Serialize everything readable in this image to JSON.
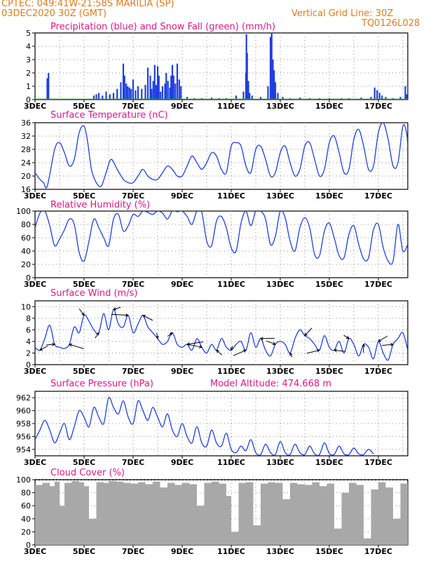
{
  "header": {
    "line1_left": "CPTEC:   049:41W-21:58S  MARILIA (SP)",
    "line2_left": "03DEC2020 30Z (GMT)",
    "line2_right": "Vertical Grid Line: 30Z",
    "line3_right": "TQ0126L028"
  },
  "colors": {
    "header": "#e07a1f",
    "title": "#e0148c",
    "line": "#1f3fe0",
    "precip": "#1f3fe0",
    "snow": "#1a9a1a",
    "cloud": "#a8a8a8",
    "grid": "#888888"
  },
  "x_ticks": [
    "3DEC",
    "5DEC",
    "7DEC",
    "9DEC",
    "11DEC",
    "13DEC",
    "15DEC",
    "17DEC"
  ],
  "x_range_days": [
    3,
    18.2
  ],
  "chart_data": [
    {
      "type": "bar",
      "id": "precip",
      "title": "Precipitation (blue) and Snow Fall (green) (mm/h)",
      "ylim": [
        0,
        5
      ],
      "yticks": [
        0,
        1,
        2,
        3,
        4,
        5
      ],
      "series": [
        {
          "name": "Precipitation",
          "color": "#1f3fe0",
          "x": [
            3.5,
            3.55,
            5.4,
            5.5,
            5.6,
            5.75,
            5.9,
            6.05,
            6.2,
            6.35,
            6.5,
            6.6,
            6.65,
            6.72,
            6.78,
            6.85,
            6.92,
            7.0,
            7.1,
            7.2,
            7.35,
            7.5,
            7.6,
            7.7,
            7.75,
            7.82,
            7.88,
            7.94,
            8.0,
            8.05,
            8.12,
            8.2,
            8.3,
            8.35,
            8.42,
            8.5,
            8.55,
            8.6,
            8.65,
            8.72,
            8.8,
            8.88,
            8.95,
            9.2,
            9.5,
            9.8,
            10.2,
            10.5,
            10.8,
            11.2,
            11.5,
            11.6,
            11.62,
            11.65,
            11.7,
            11.75,
            11.85,
            12.2,
            12.5,
            12.6,
            12.65,
            12.7,
            12.75,
            12.8,
            12.9,
            13.1,
            13.4,
            13.8,
            14.2,
            14.6,
            15.0,
            15.5,
            15.8,
            16.3,
            16.7,
            16.85,
            16.95,
            17.05,
            17.15,
            17.3,
            17.6,
            17.9,
            18.1,
            18.15
          ],
          "values": [
            1.6,
            2.0,
            0.3,
            0.4,
            0.5,
            0.3,
            0.6,
            0.4,
            0.5,
            0.8,
            1.3,
            2.7,
            1.8,
            1.2,
            1.0,
            0.9,
            0.8,
            1.5,
            0.7,
            1.0,
            0.8,
            1.1,
            2.4,
            1.8,
            0.8,
            1.4,
            2.6,
            1.1,
            2.5,
            1.8,
            0.6,
            1.0,
            1.2,
            2.0,
            1.4,
            0.9,
            1.8,
            2.6,
            1.8,
            1.2,
            2.7,
            1.5,
            1.0,
            0.2,
            0.1,
            0.1,
            0.15,
            0.1,
            0.1,
            0.3,
            0.6,
            2.0,
            4.9,
            3.5,
            1.4,
            0.5,
            0.3,
            0.2,
            1.0,
            4.7,
            5.0,
            3.0,
            2.2,
            1.3,
            0.5,
            0.2,
            0.1,
            0.15,
            0.1,
            0.1,
            0.1,
            0.1,
            0.1,
            0.15,
            0.2,
            0.9,
            0.7,
            0.5,
            0.3,
            0.2,
            0.1,
            0.2,
            1.0,
            0.4
          ]
        },
        {
          "name": "Snow Fall",
          "color": "#1a9a1a",
          "x": [
            3.0,
            18.2
          ],
          "values": [
            0,
            0
          ]
        }
      ]
    },
    {
      "type": "line",
      "id": "temperature",
      "title": "Surface Temperature (nC)",
      "ylim": [
        16,
        36
      ],
      "yticks": [
        16,
        20,
        24,
        28,
        32,
        36
      ],
      "x": [
        3.0,
        3.2,
        3.35,
        3.5,
        3.8,
        4.0,
        4.2,
        4.4,
        4.6,
        4.8,
        5.0,
        5.15,
        5.3,
        5.5,
        5.7,
        5.9,
        6.1,
        6.35,
        6.6,
        6.8,
        7.0,
        7.2,
        7.4,
        7.6,
        7.8,
        8.0,
        8.2,
        8.4,
        8.6,
        8.8,
        9.0,
        9.2,
        9.4,
        9.6,
        9.8,
        10.0,
        10.2,
        10.4,
        10.6,
        10.8,
        11.0,
        11.2,
        11.4,
        11.6,
        11.8,
        12.0,
        12.2,
        12.4,
        12.6,
        12.8,
        13.0,
        13.2,
        13.4,
        13.6,
        13.8,
        14.0,
        14.2,
        14.4,
        14.6,
        14.8,
        15.0,
        15.2,
        15.4,
        15.6,
        15.8,
        16.0,
        16.2,
        16.4,
        16.6,
        16.8,
        17.0,
        17.2,
        17.4,
        17.6,
        17.8,
        18.0,
        18.15,
        18.2
      ],
      "values": [
        21,
        19,
        18,
        17,
        28,
        30,
        27,
        23,
        25,
        33,
        35,
        30,
        22,
        18,
        17,
        21,
        25,
        22,
        19,
        18,
        18,
        20,
        22,
        20,
        19,
        19,
        21,
        23,
        22,
        20,
        20,
        23,
        26,
        24,
        22,
        24,
        27,
        26,
        22,
        21,
        29,
        30,
        29,
        23,
        21,
        28,
        29,
        25,
        20,
        21,
        27,
        29,
        24,
        20,
        22,
        29,
        30,
        25,
        20,
        22,
        30,
        32,
        27,
        21,
        22,
        31,
        34,
        29,
        22,
        23,
        33,
        36,
        31,
        23,
        24,
        35,
        33,
        29
      ]
    },
    {
      "type": "line",
      "id": "humidity",
      "title": "Relative Humidity (%)",
      "ylim": [
        0,
        100
      ],
      "yticks": [
        0,
        20,
        40,
        60,
        80,
        100
      ],
      "x": [
        3.0,
        3.2,
        3.4,
        3.6,
        3.8,
        4.0,
        4.2,
        4.4,
        4.6,
        4.8,
        5.0,
        5.2,
        5.4,
        5.6,
        5.8,
        6.0,
        6.2,
        6.4,
        6.6,
        6.8,
        7.0,
        7.2,
        7.4,
        7.6,
        7.8,
        8.0,
        8.2,
        8.4,
        8.6,
        8.8,
        9.0,
        9.2,
        9.4,
        9.6,
        9.8,
        10.0,
        10.2,
        10.4,
        10.6,
        10.8,
        11.0,
        11.2,
        11.4,
        11.6,
        11.8,
        12.0,
        12.2,
        12.4,
        12.6,
        12.8,
        13.0,
        13.2,
        13.4,
        13.6,
        13.8,
        14.0,
        14.2,
        14.4,
        14.6,
        14.8,
        15.0,
        15.2,
        15.4,
        15.6,
        15.8,
        16.0,
        16.2,
        16.4,
        16.6,
        16.8,
        17.0,
        17.2,
        17.4,
        17.6,
        17.8,
        18.0,
        18.2
      ],
      "values": [
        75,
        97,
        100,
        78,
        48,
        58,
        72,
        88,
        80,
        38,
        25,
        55,
        88,
        75,
        60,
        48,
        88,
        95,
        70,
        78,
        95,
        92,
        100,
        98,
        95,
        100,
        97,
        88,
        100,
        99,
        100,
        92,
        80,
        100,
        98,
        55,
        48,
        85,
        92,
        75,
        45,
        40,
        82,
        100,
        78,
        100,
        100,
        88,
        50,
        62,
        100,
        90,
        55,
        40,
        75,
        90,
        75,
        35,
        33,
        70,
        82,
        60,
        33,
        30,
        65,
        78,
        50,
        28,
        30,
        72,
        80,
        45,
        25,
        25,
        80,
        40,
        50
      ]
    },
    {
      "type": "line",
      "id": "wind",
      "title": "Surface Wind (m/s)",
      "ylim": [
        0,
        11
      ],
      "yticks": [
        0,
        2,
        4,
        6,
        8,
        10
      ],
      "x": [
        3.0,
        3.2,
        3.4,
        3.6,
        3.8,
        4.0,
        4.2,
        4.4,
        4.6,
        4.8,
        5.0,
        5.2,
        5.4,
        5.6,
        5.8,
        6.0,
        6.2,
        6.4,
        6.6,
        6.8,
        7.0,
        7.2,
        7.4,
        7.6,
        7.8,
        8.0,
        8.2,
        8.4,
        8.6,
        8.8,
        9.0,
        9.2,
        9.4,
        9.6,
        9.8,
        10.0,
        10.2,
        10.4,
        10.6,
        10.8,
        11.0,
        11.2,
        11.4,
        11.6,
        11.8,
        12.0,
        12.2,
        12.4,
        12.6,
        12.8,
        13.0,
        13.2,
        13.4,
        13.6,
        13.8,
        14.0,
        14.2,
        14.4,
        14.6,
        14.8,
        15.0,
        15.2,
        15.4,
        15.6,
        15.8,
        16.0,
        16.2,
        16.4,
        16.6,
        16.8,
        17.0,
        17.2,
        17.4,
        17.6,
        17.8,
        18.0,
        18.2
      ],
      "values": [
        3,
        2.5,
        4.5,
        6.8,
        3.5,
        3.0,
        2.8,
        3.5,
        6.5,
        5.5,
        8.5,
        7.5,
        6.0,
        5.5,
        8.8,
        6.0,
        9.5,
        7.0,
        6.5,
        8.5,
        5.5,
        7.0,
        8.5,
        6.5,
        5.5,
        4.5,
        3.5,
        4.0,
        5.5,
        3.5,
        3.0,
        3.5,
        2.5,
        4.5,
        3.0,
        2.0,
        3.5,
        2.5,
        4.5,
        3.0,
        2.5,
        3.5,
        4.0,
        2.5,
        5.5,
        3.0,
        4.5,
        2.5,
        1.5,
        3.5,
        4.0,
        3.5,
        2.0,
        4.5,
        6.0,
        5.0,
        4.5,
        3.5,
        2.5,
        5.0,
        3.0,
        2.5,
        4.0,
        2.0,
        4.5,
        3.5,
        1.5,
        3.5,
        3.0,
        1.0,
        4.0,
        2.0,
        0.8,
        3.5,
        4.5,
        5.5,
        2.5
      ]
    },
    {
      "type": "line",
      "id": "pressure",
      "title": "Surface Pressure (hPa)",
      "annotation": "Model Altitude: 474.668 m",
      "ylim": [
        953,
        963
      ],
      "yticks": [
        954,
        956,
        958,
        960,
        962
      ],
      "x": [
        3.0,
        3.2,
        3.4,
        3.6,
        3.8,
        4.0,
        4.2,
        4.4,
        4.6,
        4.8,
        5.0,
        5.2,
        5.4,
        5.6,
        5.8,
        6.0,
        6.2,
        6.4,
        6.6,
        6.8,
        7.0,
        7.2,
        7.4,
        7.6,
        7.8,
        8.0,
        8.2,
        8.4,
        8.6,
        8.8,
        9.0,
        9.2,
        9.4,
        9.6,
        9.8,
        10.0,
        10.2,
        10.4,
        10.6,
        10.8,
        11.0,
        11.2,
        11.4,
        11.6,
        11.8,
        12.0,
        12.2,
        12.4,
        12.6,
        12.8,
        13.0,
        13.2,
        13.4,
        13.6,
        13.8,
        14.0,
        14.2,
        14.4,
        14.6,
        14.8,
        15.0,
        15.2,
        15.4,
        15.6,
        15.8,
        16.0,
        16.2,
        16.4,
        16.6,
        16.8
      ],
      "values": [
        955.5,
        957,
        958.5,
        957,
        955,
        956.5,
        958,
        955.5,
        957.5,
        960,
        959,
        957.5,
        960.5,
        959,
        958,
        962,
        960.5,
        959.5,
        961.5,
        959,
        958,
        961.5,
        960,
        958.5,
        960.5,
        959,
        957.5,
        959.5,
        957,
        956,
        958,
        956,
        955,
        957.5,
        955,
        954.5,
        957,
        955,
        954.5,
        956.5,
        954,
        953.5,
        954.5,
        953.8,
        955.5,
        953.5,
        953.2,
        954.8,
        953.5,
        953.2,
        955.2,
        953.5,
        953.2,
        954.8,
        953.5,
        953.2,
        954.5,
        953.3,
        953.2,
        955.0,
        953.4,
        953.2,
        954.5,
        953.3,
        953.2,
        954.2,
        953.3,
        953.2,
        954.0,
        953.3
      ]
    },
    {
      "type": "area",
      "id": "cloud",
      "title": "Cloud Cover (%)",
      "ylim": [
        0,
        100
      ],
      "yticks": [
        0,
        20,
        40,
        60,
        80,
        100
      ],
      "x": [
        3.0,
        3.3,
        3.6,
        3.8,
        4.0,
        4.2,
        4.5,
        4.8,
        5.0,
        5.2,
        5.5,
        5.8,
        6.0,
        6.3,
        6.6,
        6.9,
        7.2,
        7.5,
        7.8,
        8.1,
        8.4,
        8.7,
        9.0,
        9.3,
        9.6,
        9.9,
        10.2,
        10.5,
        10.8,
        11.0,
        11.3,
        11.6,
        11.9,
        12.2,
        12.5,
        12.8,
        13.1,
        13.4,
        13.7,
        14.0,
        14.3,
        14.6,
        14.9,
        15.2,
        15.5,
        15.8,
        16.1,
        16.4,
        16.7,
        17.0,
        17.3,
        17.6,
        17.9,
        18.2
      ],
      "values": [
        92,
        95,
        90,
        97,
        60,
        95,
        98,
        96,
        90,
        40,
        96,
        95,
        98,
        97,
        95,
        94,
        96,
        93,
        97,
        88,
        95,
        92,
        95,
        93,
        60,
        95,
        97,
        94,
        75,
        20,
        95,
        96,
        30,
        94,
        96,
        95,
        70,
        95,
        93,
        92,
        96,
        90,
        94,
        25,
        80,
        95,
        92,
        10,
        85,
        96,
        88,
        40,
        94,
        90
      ]
    }
  ]
}
